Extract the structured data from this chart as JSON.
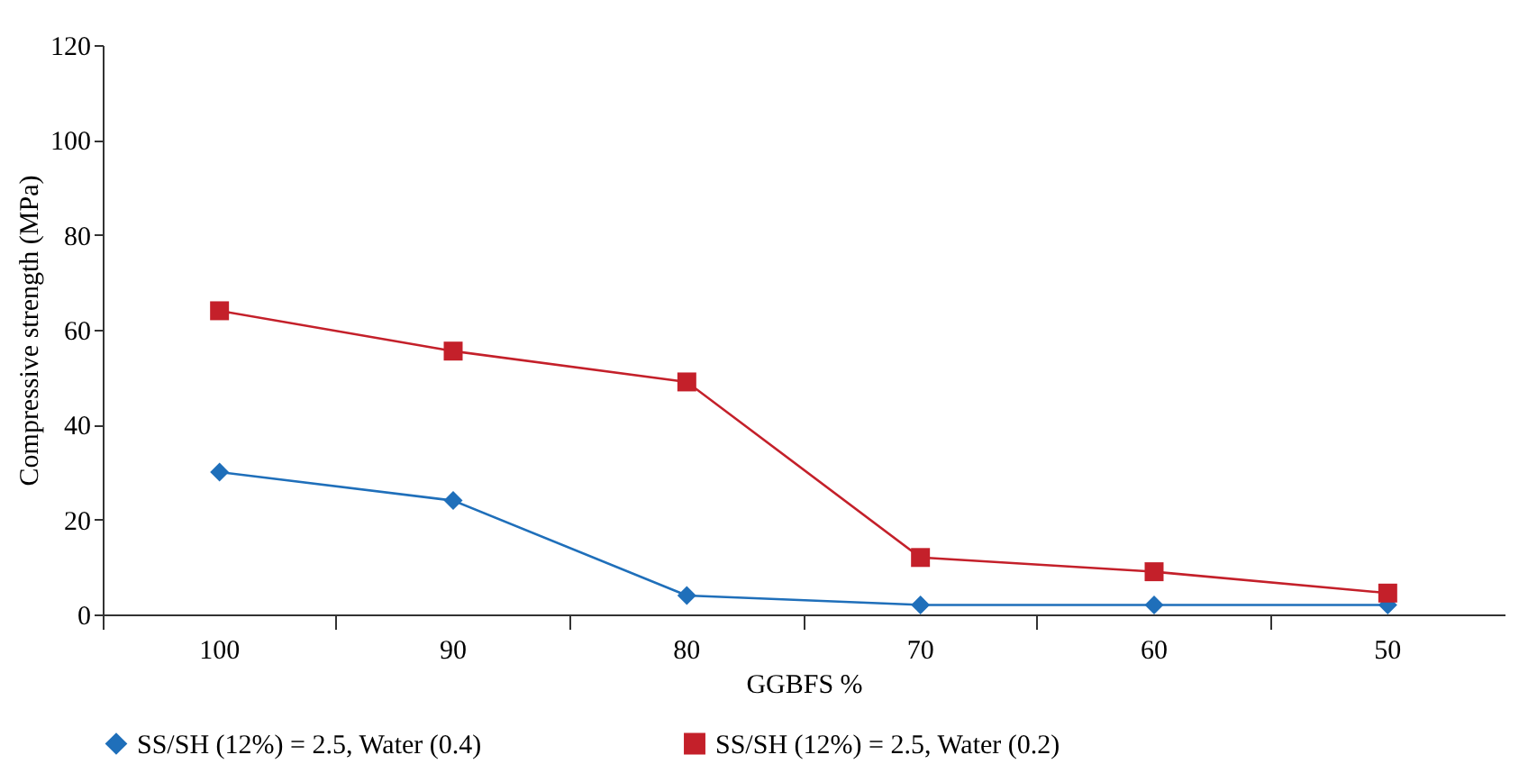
{
  "chart_data": {
    "type": "line",
    "xlabel": "GGBFS %",
    "ylabel": "Compressive strength (MPa)",
    "categories": [
      "100",
      "90",
      "80",
      "70",
      "60",
      "50"
    ],
    "series": [
      {
        "name": "SS/SH (12%) = 2.5, Water (0.4)",
        "color": "#1f6fba",
        "marker": "diamond",
        "values": [
          30,
          24,
          4,
          2,
          2,
          2
        ]
      },
      {
        "name": "SS/SH (12%) = 2.5, Water (0.2)",
        "color": "#c4202a",
        "marker": "square",
        "values": [
          64,
          55.5,
          49,
          12,
          9,
          4.5
        ]
      }
    ],
    "ylim": [
      0,
      120
    ],
    "yticks": [
      0,
      20,
      40,
      60,
      80,
      100,
      120
    ],
    "grid": false,
    "legend": "bottom",
    "line_style": "solid"
  }
}
